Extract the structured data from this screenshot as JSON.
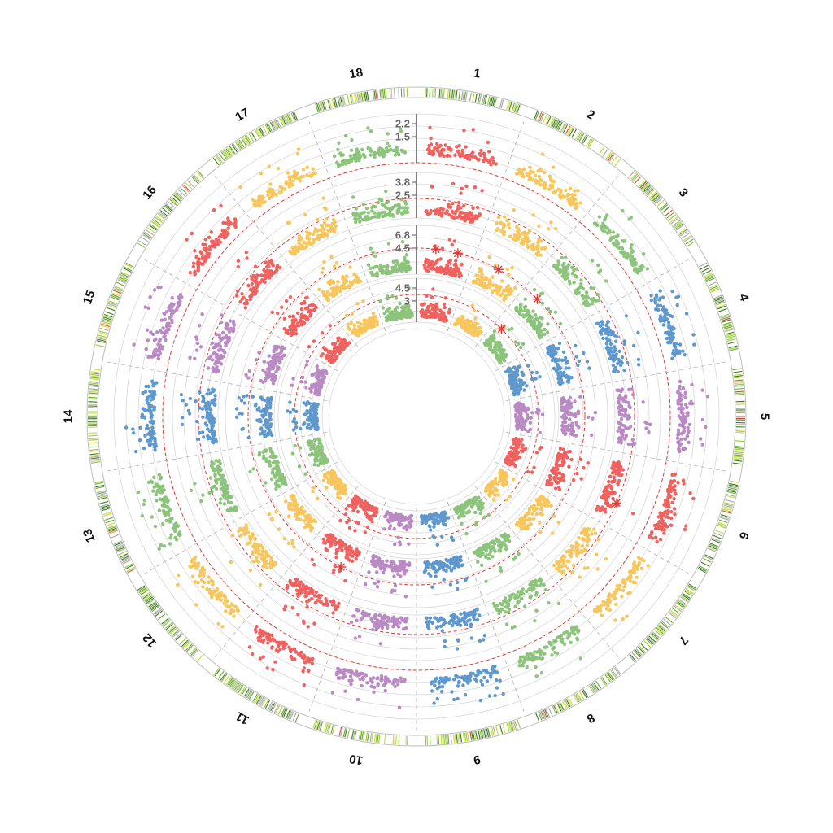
{
  "chart_data": {
    "type": "scatter",
    "layout": "circular (Circos-style circular Manhattan plot)",
    "chromosomes": [
      "1",
      "2",
      "3",
      "4",
      "5",
      "6",
      "7",
      "8",
      "9",
      "10",
      "11",
      "12",
      "13",
      "14",
      "15",
      "16",
      "17",
      "18"
    ],
    "colors": {
      "palette": [
        "#f0625f",
        "#f7c65c",
        "#8cc47c",
        "#5f98cd",
        "#b98ac4"
      ],
      "threshold": "#e53935",
      "ideogram": [
        "#6aa530",
        "#9acd32",
        "#a6a6a6",
        "#3b7a1f",
        "#c8d840"
      ],
      "ideogram_hotspot": "#d9472b"
    },
    "tracks": [
      {
        "id": "track-1",
        "ticks": [
          "2.2",
          "1.5"
        ],
        "threshold": true,
        "significant_markers": []
      },
      {
        "id": "track-2",
        "ticks": [
          "3.8",
          "2.5"
        ],
        "threshold": true,
        "significant_markers": [
          {
            "chr": "6",
            "pos": 0.7
          }
        ]
      },
      {
        "id": "track-3",
        "ticks": [
          "6.8",
          "4.5"
        ],
        "threshold": true,
        "significant_markers": [
          {
            "chr": "1",
            "pos": 0.3
          },
          {
            "chr": "1",
            "pos": 0.75
          },
          {
            "chr": "2",
            "pos": 0.45
          },
          {
            "chr": "3",
            "pos": 0.25
          },
          {
            "chr": "11",
            "pos": 0.3
          }
        ]
      },
      {
        "id": "track-4",
        "ticks": [
          "4.5",
          "3"
        ],
        "threshold": true,
        "significant_markers": [
          {
            "chr": "3",
            "pos": 0.15
          }
        ]
      }
    ],
    "grid": true,
    "legend": "none"
  }
}
